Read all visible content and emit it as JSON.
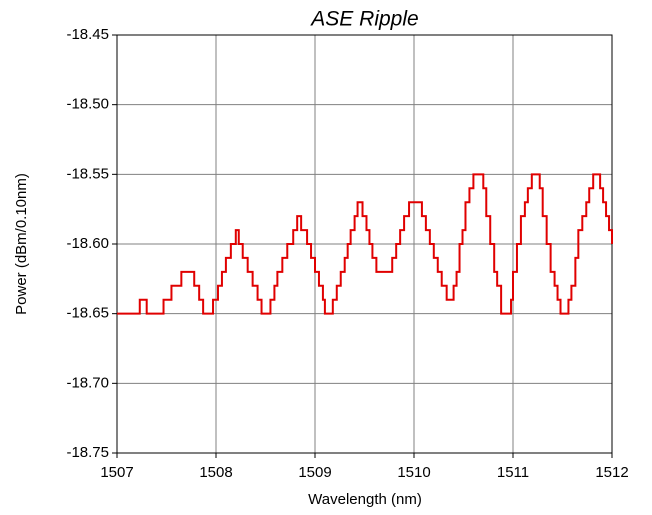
{
  "chart_data": {
    "type": "line",
    "title": "ASE Ripple",
    "x_label": "Wavelength (nm)",
    "y_label": "Power (dBm/0.10nm)",
    "xlim": [
      1507,
      1512
    ],
    "xticks": [
      1507,
      1508,
      1509,
      1510,
      1511,
      1512
    ],
    "ylim": [
      -18.75,
      -18.45
    ],
    "yticks": [
      {
        "value": -18.75,
        "label": "-18.75"
      },
      {
        "value": -18.7,
        "label": "-18.70"
      },
      {
        "value": -18.65,
        "label": "-18.65"
      },
      {
        "value": -18.6,
        "label": "-18.60"
      },
      {
        "value": -18.55,
        "label": "-18.55"
      },
      {
        "value": -18.5,
        "label": "-18.50"
      },
      {
        "value": -18.45,
        "label": "-18.45"
      }
    ],
    "grid": true,
    "step": true,
    "series": [
      {
        "name": "ASE",
        "color": "#e00000",
        "x": [
          1507.0,
          1507.23,
          1507.3,
          1507.47,
          1507.55,
          1507.65,
          1507.78,
          1507.83,
          1507.87,
          1507.97,
          1508.02,
          1508.06,
          1508.1,
          1508.15,
          1508.2,
          1508.23,
          1508.27,
          1508.32,
          1508.37,
          1508.42,
          1508.46,
          1508.55,
          1508.59,
          1508.62,
          1508.67,
          1508.72,
          1508.78,
          1508.82,
          1508.86,
          1508.92,
          1508.96,
          1509.0,
          1509.04,
          1509.08,
          1509.1,
          1509.18,
          1509.22,
          1509.26,
          1509.3,
          1509.33,
          1509.36,
          1509.4,
          1509.43,
          1509.48,
          1509.52,
          1509.55,
          1509.58,
          1509.62,
          1509.78,
          1509.82,
          1509.86,
          1509.9,
          1509.95,
          1510.08,
          1510.12,
          1510.16,
          1510.2,
          1510.24,
          1510.28,
          1510.33,
          1510.4,
          1510.43,
          1510.46,
          1510.49,
          1510.52,
          1510.56,
          1510.6,
          1510.7,
          1510.73,
          1510.77,
          1510.81,
          1510.84,
          1510.88,
          1510.98,
          1511.0,
          1511.04,
          1511.08,
          1511.12,
          1511.15,
          1511.19,
          1511.27,
          1511.3,
          1511.34,
          1511.38,
          1511.42,
          1511.45,
          1511.48,
          1511.56,
          1511.59,
          1511.63,
          1511.66,
          1511.7,
          1511.74,
          1511.77,
          1511.81,
          1511.88,
          1511.91,
          1511.94,
          1511.97,
          1512.0
        ],
        "values": [
          -18.65,
          -18.64,
          -18.65,
          -18.64,
          -18.63,
          -18.62,
          -18.63,
          -18.64,
          -18.65,
          -18.64,
          -18.63,
          -18.62,
          -18.61,
          -18.6,
          -18.59,
          -18.6,
          -18.61,
          -18.62,
          -18.63,
          -18.64,
          -18.65,
          -18.64,
          -18.63,
          -18.62,
          -18.61,
          -18.6,
          -18.59,
          -18.58,
          -18.59,
          -18.6,
          -18.61,
          -18.62,
          -18.63,
          -18.64,
          -18.65,
          -18.64,
          -18.63,
          -18.62,
          -18.61,
          -18.6,
          -18.59,
          -18.58,
          -18.57,
          -18.58,
          -18.59,
          -18.6,
          -18.61,
          -18.62,
          -18.61,
          -18.6,
          -18.59,
          -18.58,
          -18.57,
          -18.58,
          -18.59,
          -18.6,
          -18.61,
          -18.62,
          -18.63,
          -18.64,
          -18.63,
          -18.62,
          -18.6,
          -18.59,
          -18.57,
          -18.56,
          -18.55,
          -18.56,
          -18.58,
          -18.6,
          -18.62,
          -18.63,
          -18.65,
          -18.64,
          -18.62,
          -18.6,
          -18.58,
          -18.57,
          -18.56,
          -18.55,
          -18.56,
          -18.58,
          -18.6,
          -18.62,
          -18.63,
          -18.64,
          -18.65,
          -18.64,
          -18.63,
          -18.61,
          -18.59,
          -18.58,
          -18.57,
          -18.56,
          -18.55,
          -18.56,
          -18.57,
          -18.58,
          -18.59,
          -18.6
        ]
      }
    ]
  }
}
